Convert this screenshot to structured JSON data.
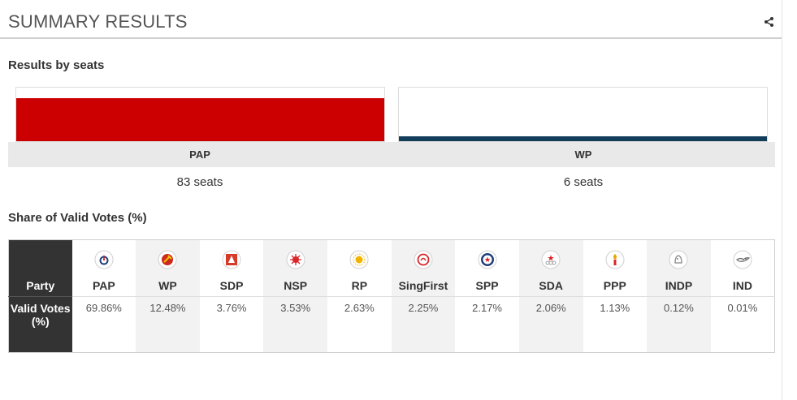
{
  "header": {
    "title": "SUMMARY RESULTS",
    "share_icon": "share-icon"
  },
  "sections": {
    "seats_title": "Results by seats",
    "votes_title": "Share of Valid Votes (%)"
  },
  "colors": {
    "pap": "#cc0000",
    "wp": "#123e5c",
    "label_bg": "#333333"
  },
  "chart_data": {
    "type": "bar",
    "title": "Results by seats",
    "categories": [
      "PAP",
      "WP"
    ],
    "values": [
      83,
      6
    ],
    "value_labels": [
      "83 seats",
      "6 seats"
    ],
    "ylim": [
      0,
      83
    ]
  },
  "votes_table": {
    "row_label_party": "Party",
    "row_label_votes": "Valid Votes (%)",
    "parties": [
      {
        "name": "PAP",
        "value": "69.86%",
        "icon": "pap-logo-icon",
        "color": "#d40000"
      },
      {
        "name": "WP",
        "value": "12.48%",
        "icon": "wp-hammer-icon",
        "color": "#cc2a1e"
      },
      {
        "name": "SDP",
        "value": "3.76%",
        "icon": "sdp-logo-icon",
        "color": "#d63b2a"
      },
      {
        "name": "NSP",
        "value": "3.53%",
        "icon": "nsp-star-icon",
        "color": "#d8262a"
      },
      {
        "name": "RP",
        "value": "2.63%",
        "icon": "rp-sun-icon",
        "color": "#f0b400"
      },
      {
        "name": "SingFirst",
        "value": "2.25%",
        "icon": "singfirst-logo-icon",
        "color": "#d8262a"
      },
      {
        "name": "SPP",
        "value": "2.17%",
        "icon": "spp-star-icon",
        "color": "#1f3f7a"
      },
      {
        "name": "SDA",
        "value": "2.06%",
        "icon": "sda-rings-icon",
        "color": "#d8262a"
      },
      {
        "name": "PPP",
        "value": "1.13%",
        "icon": "ppp-torch-icon",
        "color": "#d8262a"
      },
      {
        "name": "INDP",
        "value": "0.12%",
        "icon": "indp-lion-icon",
        "color": "#888888"
      },
      {
        "name": "IND",
        "value": "0.01%",
        "icon": "ind-bird-icon",
        "color": "#666666"
      }
    ]
  }
}
